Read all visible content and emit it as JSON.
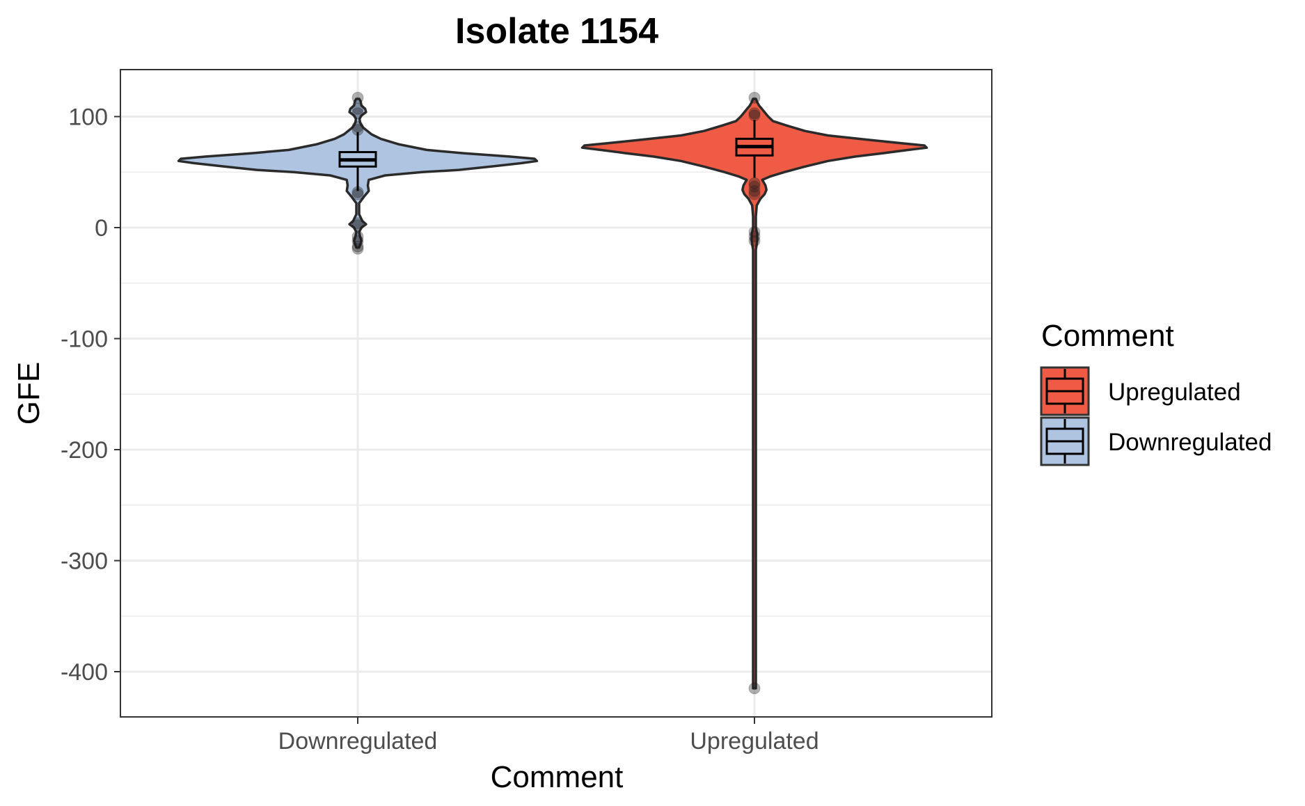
{
  "chart_data": {
    "type": "violin",
    "title": "Isolate 1154",
    "xlabel": "Comment",
    "ylabel": "GFE",
    "categories": [
      "Downregulated",
      "Upregulated"
    ],
    "ylim": [
      -440,
      143
    ],
    "yticks": [
      100,
      0,
      -100,
      -200,
      -300,
      -400
    ],
    "ytick_labels": [
      "100",
      "0",
      "-100",
      "-200",
      "-300",
      "-400"
    ],
    "grid": true,
    "series": [
      {
        "category": "Downregulated",
        "color": "#aec4e0",
        "box": {
          "q1": 55,
          "median": 61,
          "q3": 68,
          "whisker_low": 33,
          "whisker_high": 86
        },
        "outliers": [
          117,
          107,
          103,
          91,
          88,
          32,
          30,
          4,
          2,
          -8,
          -12,
          -17,
          -19
        ],
        "density": [
          [
            -18,
            3
          ],
          [
            -12,
            8
          ],
          [
            -8,
            5
          ],
          [
            -4,
            3
          ],
          [
            0,
            8
          ],
          [
            3,
            18
          ],
          [
            6,
            10
          ],
          [
            12,
            3
          ],
          [
            22,
            3
          ],
          [
            28,
            14
          ],
          [
            33,
            24
          ],
          [
            38,
            22
          ],
          [
            43,
            24
          ],
          [
            47,
            60
          ],
          [
            50,
            140
          ],
          [
            52,
            220
          ],
          [
            55,
            290
          ],
          [
            58,
            355
          ],
          [
            60,
            390
          ],
          [
            62,
            385
          ],
          [
            64,
            330
          ],
          [
            67,
            230
          ],
          [
            70,
            150
          ],
          [
            75,
            90
          ],
          [
            80,
            50
          ],
          [
            84,
            30
          ],
          [
            88,
            18
          ],
          [
            90,
            12
          ],
          [
            93,
            7
          ],
          [
            95,
            5
          ],
          [
            98,
            4
          ],
          [
            101,
            8
          ],
          [
            104,
            18
          ],
          [
            107,
            16
          ],
          [
            110,
            8
          ],
          [
            114,
            6
          ],
          [
            116,
            3
          ]
        ]
      },
      {
        "category": "Upregulated",
        "color": "#ef5b44",
        "box": {
          "q1": 65,
          "median": 73,
          "q3": 80,
          "whisker_low": 45,
          "whisker_high": 97
        },
        "outliers": [
          117,
          103,
          101,
          40,
          37,
          33,
          30,
          -4,
          -8,
          -12,
          -415
        ],
        "density": [
          [
            -415,
            3
          ],
          [
            -410,
            3
          ],
          [
            -20,
            3
          ],
          [
            -12,
            6
          ],
          [
            -6,
            6
          ],
          [
            0,
            3
          ],
          [
            10,
            3
          ],
          [
            20,
            5
          ],
          [
            26,
            13
          ],
          [
            30,
            22
          ],
          [
            34,
            26
          ],
          [
            38,
            24
          ],
          [
            43,
            17
          ],
          [
            46,
            34
          ],
          [
            50,
            65
          ],
          [
            55,
            110
          ],
          [
            60,
            160
          ],
          [
            64,
            220
          ],
          [
            67,
            280
          ],
          [
            70,
            335
          ],
          [
            72,
            375
          ],
          [
            74,
            370
          ],
          [
            76,
            320
          ],
          [
            79,
            250
          ],
          [
            83,
            160
          ],
          [
            87,
            110
          ],
          [
            92,
            70
          ],
          [
            96,
            40
          ],
          [
            100,
            30
          ],
          [
            104,
            22
          ],
          [
            107,
            16
          ],
          [
            110,
            10
          ],
          [
            113,
            6
          ],
          [
            116,
            3
          ]
        ]
      }
    ],
    "legend": {
      "title": "Comment",
      "position": "right",
      "items": [
        {
          "label": "Upregulated",
          "color": "#ef5b44"
        },
        {
          "label": "Downregulated",
          "color": "#aec4e0"
        }
      ]
    }
  }
}
